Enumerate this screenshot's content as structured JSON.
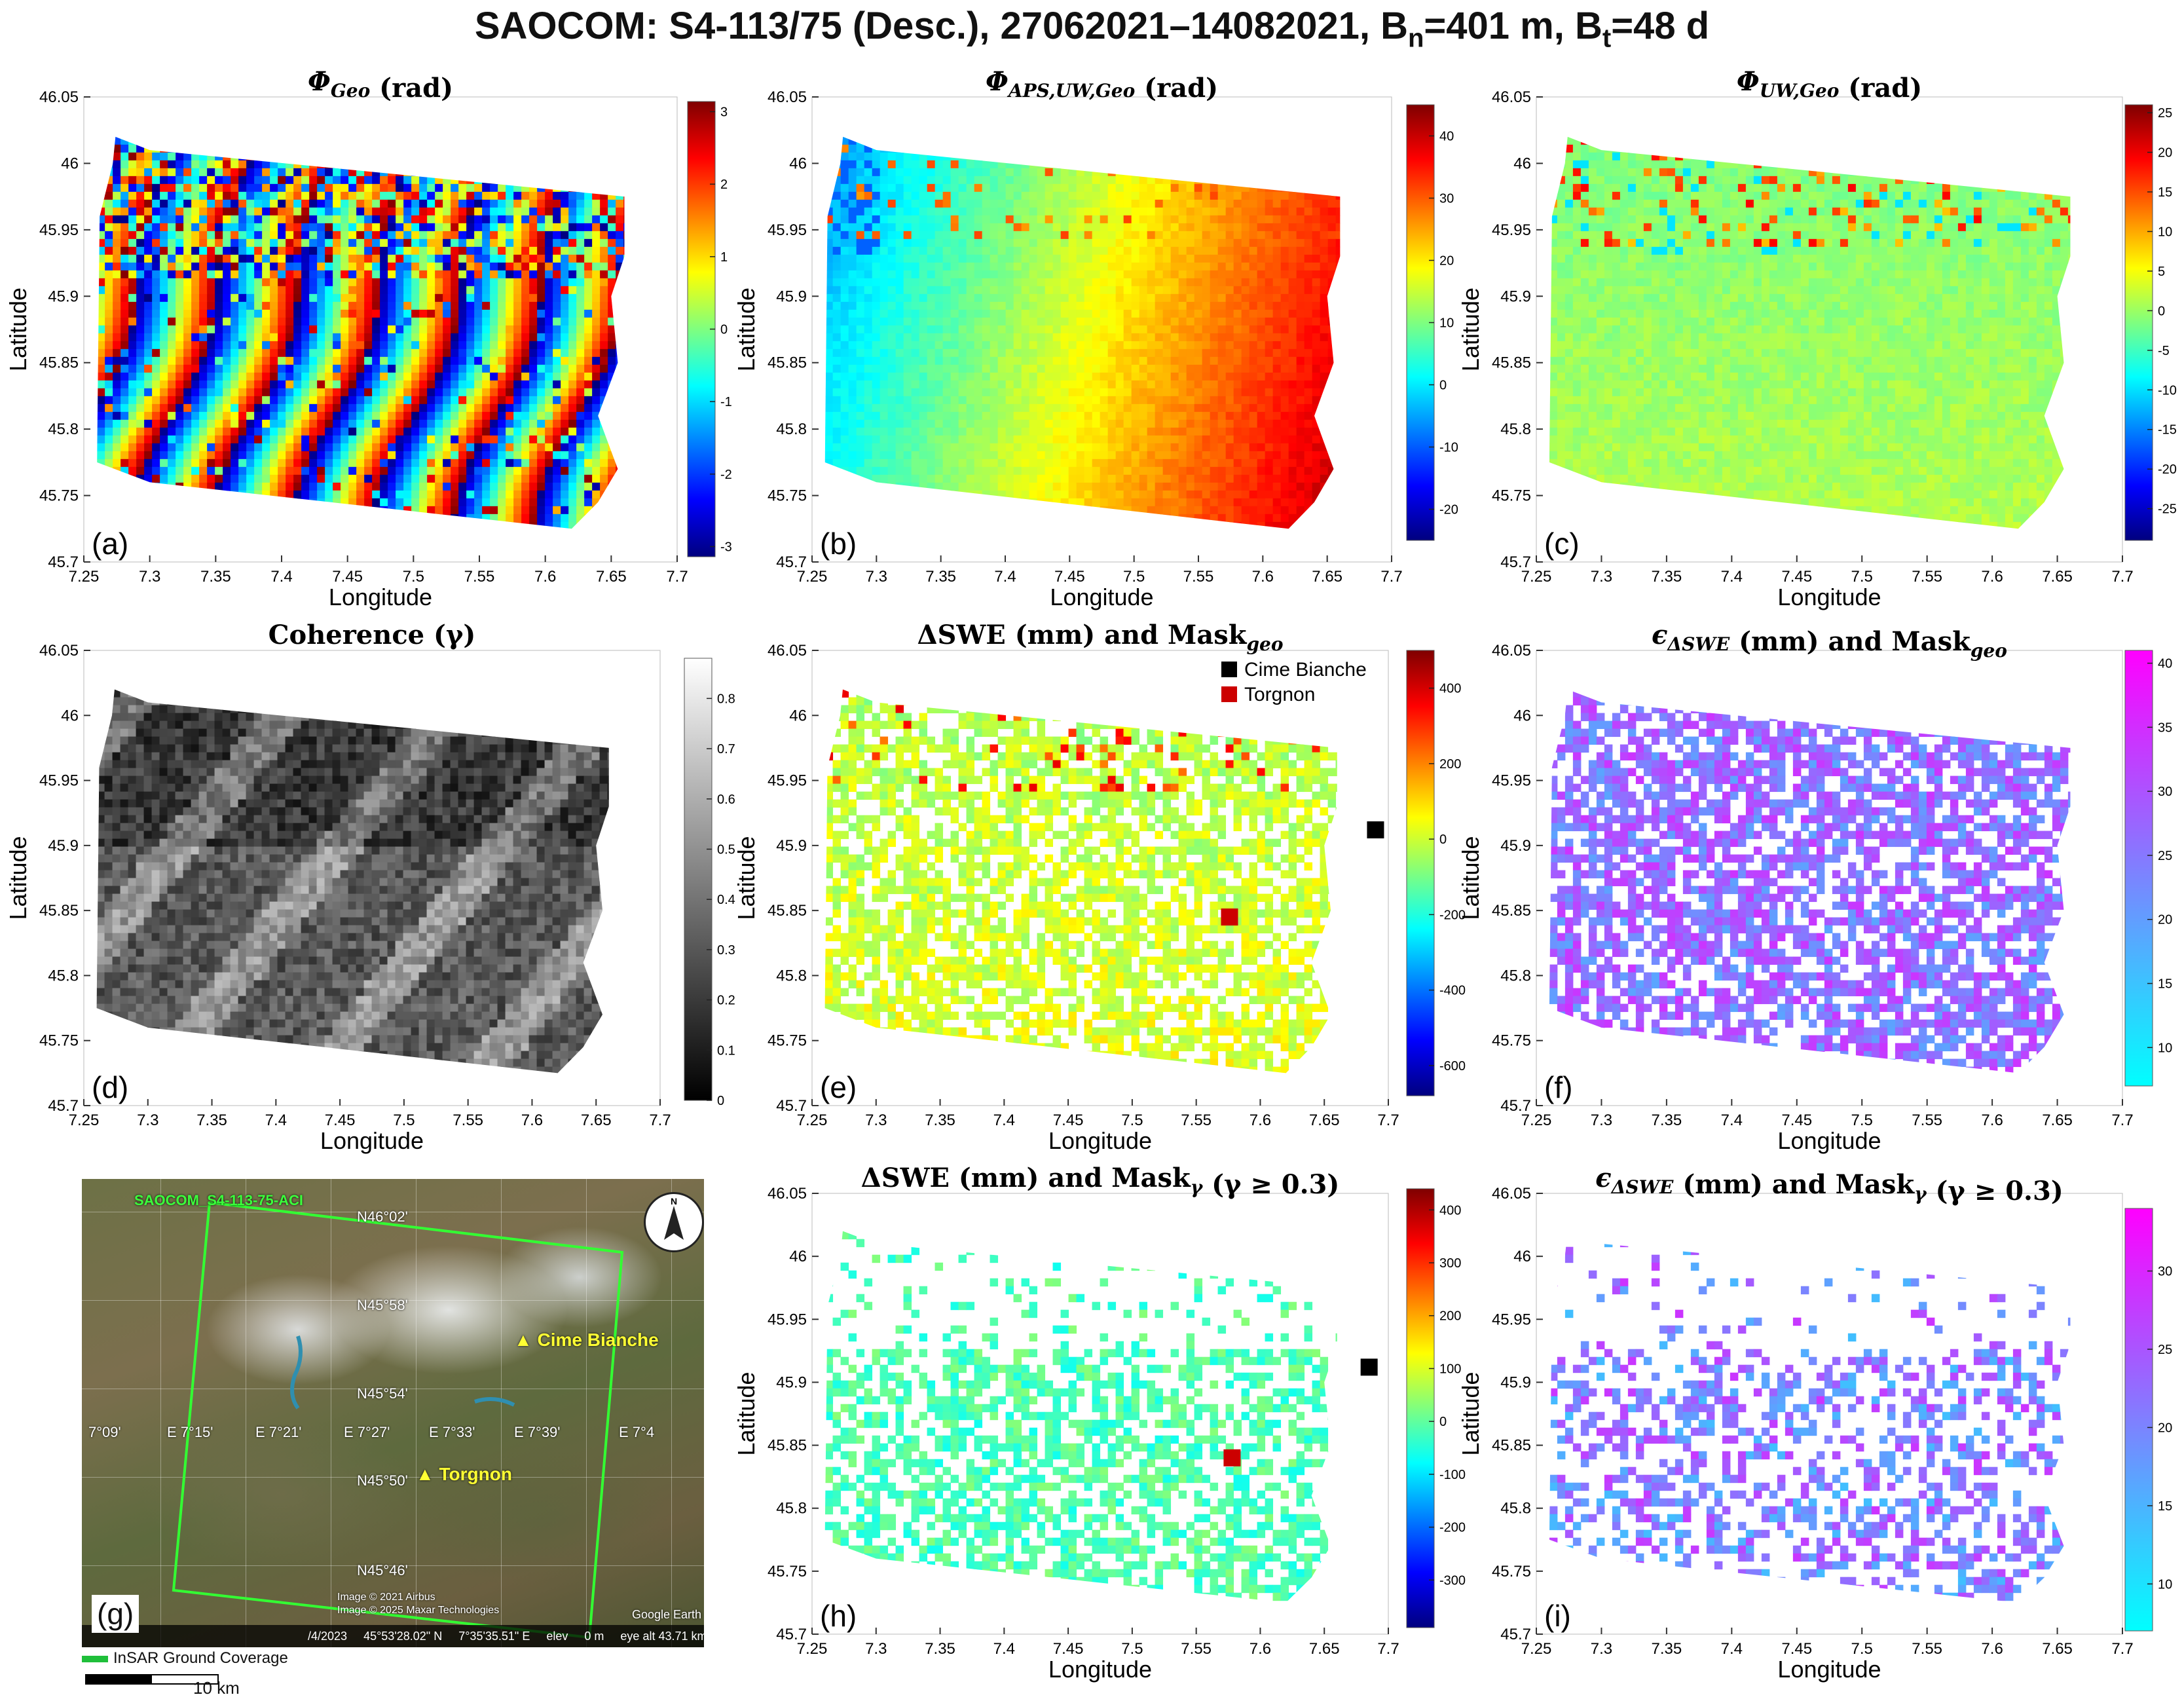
{
  "figure_title": {
    "main": "SAOCOM: S4-113/75 (Desc.), 27062021–14082021, B",
    "bn_sub": "n",
    "bn_val": "=401 m,  B",
    "bt_sub": "t",
    "bt_val": "=48 d"
  },
  "colors": {
    "jet": [
      "#00007f",
      "#0000ff",
      "#007fff",
      "#00ffff",
      "#7fff7f",
      "#ffff00",
      "#ff7f00",
      "#ff0000",
      "#7f0000"
    ],
    "gray": [
      "#000000",
      "#ffffff"
    ],
    "cool": [
      "#00ffff",
      "#ff00ff"
    ],
    "cime_bianche": "#000000",
    "torgnon": "#cc0000",
    "coverage": "#1fbf3a"
  },
  "chart_data": [
    {
      "id": "a",
      "type": "heatmap",
      "letter": "(a)",
      "title_symbol": "Φ",
      "title_sub": "Geo",
      "title_suffix": " (rad)",
      "xlabel": "Longitude",
      "ylabel": "Latitude",
      "xlim": [
        7.25,
        7.7
      ],
      "ylim": [
        45.7,
        46.05
      ],
      "xticks": [
        "7.25",
        "7.3",
        "7.35",
        "7.4",
        "7.45",
        "7.5",
        "7.55",
        "7.6",
        "7.65",
        "7.7"
      ],
      "yticks": [
        "45.7",
        "45.75",
        "45.8",
        "45.85",
        "45.9",
        "45.95",
        "46",
        "46.05"
      ],
      "colormap": "jet",
      "clim": [
        -3.14,
        3.14
      ],
      "cticks": [
        "3",
        "2",
        "1",
        "0",
        "-1",
        "-2",
        "-3"
      ],
      "pattern": "fringes"
    },
    {
      "id": "b",
      "type": "heatmap",
      "letter": "(b)",
      "title_symbol": "Φ",
      "title_sub": "APS,UW,Geo",
      "title_suffix": " (rad)",
      "xlabel": "Longitude",
      "ylabel": "Latitude",
      "xlim": [
        7.25,
        7.7
      ],
      "ylim": [
        45.7,
        46.05
      ],
      "xticks": [
        "7.25",
        "7.3",
        "7.35",
        "7.4",
        "7.45",
        "7.5",
        "7.55",
        "7.6",
        "7.65",
        "7.7"
      ],
      "yticks": [
        "45.7",
        "45.75",
        "45.8",
        "45.85",
        "45.9",
        "45.95",
        "46",
        "46.05"
      ],
      "colormap": "jet",
      "clim": [
        -25,
        45
      ],
      "cticks": [
        "40",
        "30",
        "20",
        "10",
        "0",
        "-10",
        "-20"
      ],
      "pattern": "ramp"
    },
    {
      "id": "c",
      "type": "heatmap",
      "letter": "(c)",
      "title_symbol": "Φ",
      "title_sub": "UW,Geo",
      "title_suffix": " (rad)",
      "xlabel": "Longitude",
      "ylabel": "Latitude",
      "xlim": [
        7.25,
        7.7
      ],
      "ylim": [
        45.7,
        46.05
      ],
      "xticks": [
        "7.25",
        "7.3",
        "7.35",
        "7.4",
        "7.45",
        "7.5",
        "7.55",
        "7.6",
        "7.65",
        "7.7"
      ],
      "yticks": [
        "45.7",
        "45.75",
        "45.8",
        "45.85",
        "45.9",
        "45.95",
        "46",
        "46.05"
      ],
      "colormap": "jet",
      "clim": [
        -29,
        26
      ],
      "cticks": [
        "25",
        "20",
        "15",
        "10",
        "5",
        "0",
        "-5",
        "-10",
        "-15",
        "-20",
        "-25"
      ],
      "pattern": "flat"
    },
    {
      "id": "d",
      "type": "heatmap",
      "letter": "(d)",
      "title_symbol": "",
      "title_text": "Coherence (γ)",
      "title_sub": "",
      "title_suffix": "",
      "xlabel": "Longitude",
      "ylabel": "Latitude",
      "xlim": [
        7.25,
        7.7
      ],
      "ylim": [
        45.7,
        46.05
      ],
      "xticks": [
        "7.25",
        "7.3",
        "7.35",
        "7.4",
        "7.45",
        "7.5",
        "7.55",
        "7.6",
        "7.65",
        "7.7"
      ],
      "yticks": [
        "45.7",
        "45.75",
        "45.8",
        "45.85",
        "45.9",
        "45.95",
        "46",
        "46.05"
      ],
      "colormap": "gray",
      "clim": [
        0,
        0.88
      ],
      "cticks": [
        "0.8",
        "0.7",
        "0.6",
        "0.5",
        "0.4",
        "0.3",
        "0.2",
        "0.1",
        "0"
      ],
      "pattern": "coherence"
    },
    {
      "id": "e",
      "type": "heatmap",
      "letter": "(e)",
      "title_symbol": "",
      "title_text": "ΔSWE (mm) and Mask",
      "title_sub": "geo",
      "title_suffix": "",
      "xlabel": "Longitude",
      "ylabel": "Latitude",
      "xlim": [
        7.25,
        7.7
      ],
      "ylim": [
        45.7,
        46.05
      ],
      "xticks": [
        "7.25",
        "7.3",
        "7.35",
        "7.4",
        "7.45",
        "7.5",
        "7.55",
        "7.6",
        "7.65",
        "7.7"
      ],
      "yticks": [
        "45.7",
        "45.75",
        "45.8",
        "45.85",
        "45.9",
        "45.95",
        "46",
        "46.05"
      ],
      "colormap": "jet",
      "clim": [
        -680,
        500
      ],
      "cticks": [
        "400",
        "200",
        "0",
        "-200",
        "-400",
        "-600"
      ],
      "pattern": "masked-swe",
      "legend": [
        {
          "label": "Cime Bianche",
          "color": "#000000"
        },
        {
          "label": "Torgnon",
          "color": "#cc0000"
        }
      ],
      "markers": [
        {
          "name": "Cime Bianche",
          "x": 7.69,
          "y": 45.912,
          "color": "#000000"
        },
        {
          "name": "Torgnon",
          "x": 7.576,
          "y": 45.845,
          "color": "#cc0000"
        }
      ]
    },
    {
      "id": "f",
      "type": "heatmap",
      "letter": "(f)",
      "title_symbol": "ϵ",
      "title_sub": "ΔSWE",
      "title_suffix": " (mm) and Mask",
      "title_sub2": "geo",
      "xlabel": "Longitude",
      "ylabel": "Latitude",
      "xlim": [
        7.25,
        7.7
      ],
      "ylim": [
        45.7,
        46.05
      ],
      "xticks": [
        "7.25",
        "7.3",
        "7.35",
        "7.4",
        "7.45",
        "7.5",
        "7.55",
        "7.6",
        "7.65",
        "7.7"
      ],
      "yticks": [
        "45.7",
        "45.75",
        "45.8",
        "45.85",
        "45.9",
        "45.95",
        "46",
        "46.05"
      ],
      "colormap": "cool",
      "clim": [
        7,
        41
      ],
      "cticks": [
        "40",
        "35",
        "30",
        "25",
        "20",
        "15",
        "10"
      ],
      "pattern": "masked-err"
    },
    {
      "id": "h",
      "type": "heatmap",
      "letter": "(h)",
      "title_symbol": "",
      "title_text": "ΔSWE (mm) and Mask",
      "title_sub": "γ",
      "title_suffix": " (γ ≥ 0.3)",
      "xlabel": "Longitude",
      "ylabel": "Latitude",
      "xlim": [
        7.25,
        7.7
      ],
      "ylim": [
        45.7,
        46.05
      ],
      "xticks": [
        "7.25",
        "7.3",
        "7.35",
        "7.4",
        "7.45",
        "7.5",
        "7.55",
        "7.6",
        "7.65",
        "7.7"
      ],
      "yticks": [
        "45.7",
        "45.75",
        "45.8",
        "45.85",
        "45.9",
        "45.95",
        "46",
        "46.05"
      ],
      "colormap": "jet",
      "clim": [
        -390,
        440
      ],
      "cticks": [
        "400",
        "300",
        "200",
        "100",
        "0",
        "-100",
        "-200",
        "-300"
      ],
      "pattern": "sparse-swe",
      "markers": [
        {
          "name": "Cime Bianche",
          "x": 7.685,
          "y": 45.912,
          "color": "#000000"
        },
        {
          "name": "Torgnon",
          "x": 7.578,
          "y": 45.84,
          "color": "#cc0000"
        }
      ]
    },
    {
      "id": "i",
      "type": "heatmap",
      "letter": "(i)",
      "title_symbol": "ϵ",
      "title_sub": "ΔSWE",
      "title_suffix": " (mm) and Mask",
      "title_sub2": "γ",
      "title_suffix2": " (γ ≥ 0.3)",
      "xlabel": "Longitude",
      "ylabel": "Latitude",
      "xlim": [
        7.25,
        7.7
      ],
      "ylim": [
        45.7,
        46.05
      ],
      "xticks": [
        "7.25",
        "7.3",
        "7.35",
        "7.4",
        "7.45",
        "7.5",
        "7.55",
        "7.6",
        "7.65",
        "7.7"
      ],
      "yticks": [
        "45.7",
        "45.75",
        "45.8",
        "45.85",
        "45.9",
        "45.95",
        "46",
        "46.05"
      ],
      "colormap": "cool",
      "clim": [
        7,
        34
      ],
      "cticks": [
        "30",
        "25",
        "20",
        "15",
        "10"
      ],
      "pattern": "sparse-err"
    }
  ],
  "map_panel": {
    "letter": "(g)",
    "coverage_label": "SAOCOM_S4-113-75-ACI",
    "lat_labels": [
      "N46°02'",
      "N45°58'",
      "N45°54'",
      "N45°50'",
      "N45°46'"
    ],
    "lon_labels": [
      "7°09'",
      "E 7°15'",
      "E 7°21'",
      "E 7°27'",
      "E 7°33'",
      "E 7°39'",
      "E 7°4"
    ],
    "places": [
      "Cime Bianche",
      "Torgnon"
    ],
    "legend_label": "InSAR Ground Coverage",
    "scale_label": "10 km",
    "credits": [
      "Image © 2021 Airbus",
      "Image © 2025 Maxar Technologies"
    ],
    "watermark": "Google Earth",
    "status": [
      "/4/2023",
      "45°53'28.02\" N",
      "7°35'35.51\" E",
      "elev",
      "0 m",
      "eye alt 43.71 km"
    ],
    "compass_letter": "N"
  }
}
